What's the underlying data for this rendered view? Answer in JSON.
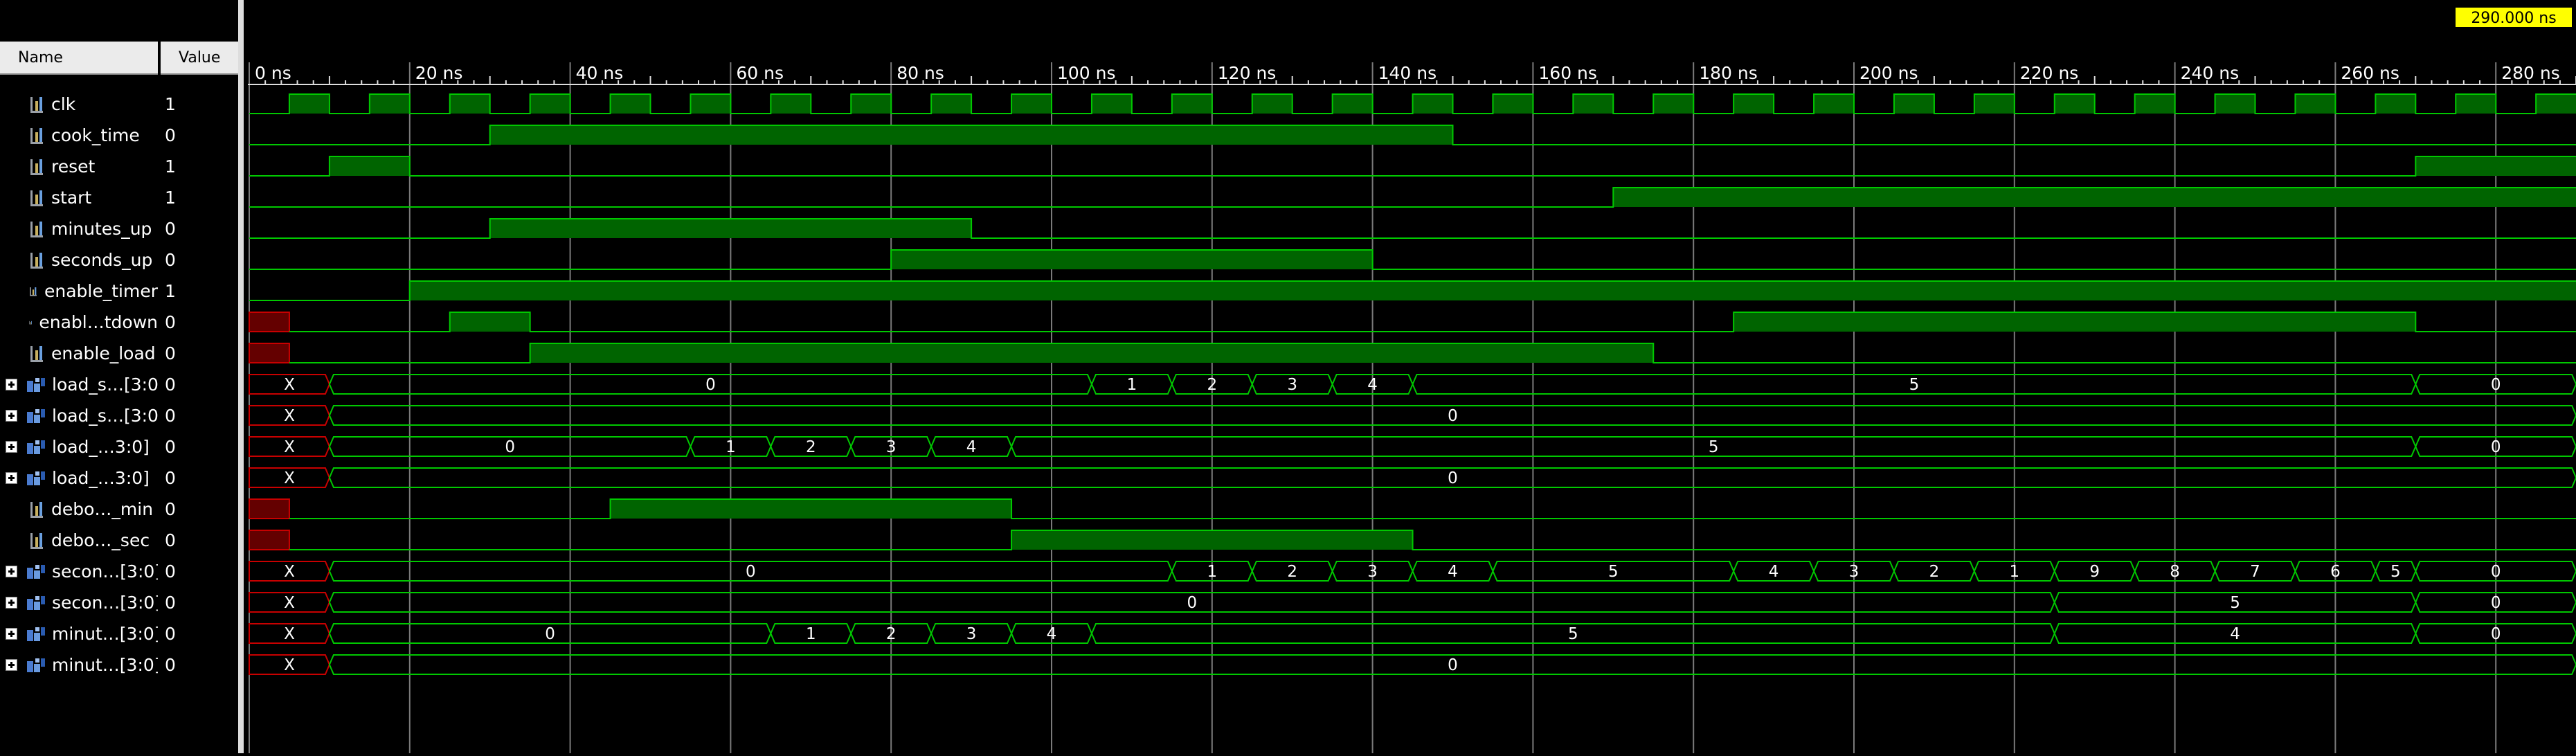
{
  "header": {
    "name_label": "Name",
    "value_label": "Value"
  },
  "cursor": {
    "time_label": "290.000 ns"
  },
  "timeline": {
    "tick_labels": [
      "0 ns",
      "20 ns",
      "40 ns",
      "60 ns",
      "80 ns",
      "100 ns",
      "120 ns",
      "140 ns",
      "160 ns",
      "180 ns",
      "200 ns",
      "220 ns",
      "240 ns",
      "260 ns",
      "280 ns"
    ],
    "tick_values": [
      0,
      20,
      40,
      60,
      80,
      100,
      120,
      140,
      160,
      180,
      200,
      220,
      240,
      260,
      280
    ]
  },
  "signals": [
    {
      "name": "clk",
      "value": "1",
      "kind": "bit",
      "type": "clock",
      "period": 10,
      "first_rise": 5
    },
    {
      "name": "cook_time",
      "value": "0",
      "kind": "bit",
      "segments": [
        [
          0,
          30,
          0
        ],
        [
          30,
          150,
          1
        ],
        [
          150,
          290,
          0
        ]
      ]
    },
    {
      "name": "reset",
      "value": "1",
      "kind": "bit",
      "segments": [
        [
          0,
          10,
          0
        ],
        [
          10,
          20,
          1
        ],
        [
          20,
          270,
          0
        ],
        [
          270,
          290,
          1
        ]
      ]
    },
    {
      "name": "start",
      "value": "1",
      "kind": "bit",
      "segments": [
        [
          0,
          170,
          0
        ],
        [
          170,
          290,
          1
        ]
      ]
    },
    {
      "name": "minutes_up",
      "value": "0",
      "kind": "bit",
      "segments": [
        [
          0,
          30,
          0
        ],
        [
          30,
          90,
          1
        ],
        [
          90,
          290,
          0
        ]
      ]
    },
    {
      "name": "seconds_up",
      "value": "0",
      "kind": "bit",
      "segments": [
        [
          0,
          80,
          0
        ],
        [
          80,
          140,
          1
        ],
        [
          140,
          290,
          0
        ]
      ]
    },
    {
      "name": "enable_timer",
      "value": "1",
      "kind": "bit",
      "segments": [
        [
          0,
          20,
          0
        ],
        [
          20,
          290,
          1
        ]
      ]
    },
    {
      "name": "enabl…tdown",
      "value": "0",
      "kind": "bit",
      "segments": [
        [
          0,
          5,
          "x"
        ],
        [
          5,
          25,
          0
        ],
        [
          25,
          35,
          1
        ],
        [
          35,
          185,
          0
        ],
        [
          185,
          270,
          1
        ],
        [
          270,
          290,
          0
        ]
      ]
    },
    {
      "name": "enable_load",
      "value": "0",
      "kind": "bit",
      "segments": [
        [
          0,
          5,
          "x"
        ],
        [
          5,
          35,
          0
        ],
        [
          35,
          175,
          1
        ],
        [
          175,
          290,
          0
        ]
      ]
    },
    {
      "name": "load_s…[3:0]",
      "value": "0",
      "kind": "bus",
      "segments": [
        [
          0,
          10,
          "X"
        ],
        [
          10,
          105,
          "0"
        ],
        [
          105,
          115,
          "1"
        ],
        [
          115,
          125,
          "2"
        ],
        [
          125,
          135,
          "3"
        ],
        [
          135,
          145,
          "4"
        ],
        [
          145,
          270,
          "5"
        ],
        [
          270,
          290,
          "0"
        ]
      ]
    },
    {
      "name": "load_s…[3:0]",
      "value": "0",
      "kind": "bus",
      "segments": [
        [
          0,
          10,
          "X"
        ],
        [
          10,
          290,
          "0"
        ]
      ]
    },
    {
      "name": "load_…3:0]",
      "value": "0",
      "kind": "bus",
      "segments": [
        [
          0,
          10,
          "X"
        ],
        [
          10,
          55,
          "0"
        ],
        [
          55,
          65,
          "1"
        ],
        [
          65,
          75,
          "2"
        ],
        [
          75,
          85,
          "3"
        ],
        [
          85,
          95,
          "4"
        ],
        [
          95,
          270,
          "5"
        ],
        [
          270,
          290,
          "0"
        ]
      ]
    },
    {
      "name": "load_…3:0]",
      "value": "0",
      "kind": "bus",
      "segments": [
        [
          0,
          10,
          "X"
        ],
        [
          10,
          290,
          "0"
        ]
      ]
    },
    {
      "name": "debo…_min",
      "value": "0",
      "kind": "bit",
      "segments": [
        [
          0,
          5,
          "x"
        ],
        [
          5,
          45,
          0
        ],
        [
          45,
          95,
          1
        ],
        [
          95,
          290,
          0
        ]
      ]
    },
    {
      "name": "debo…_sec",
      "value": "0",
      "kind": "bit",
      "segments": [
        [
          0,
          5,
          "x"
        ],
        [
          5,
          95,
          0
        ],
        [
          95,
          145,
          1
        ],
        [
          145,
          290,
          0
        ]
      ]
    },
    {
      "name": "secon…[3:0]",
      "value": "0",
      "kind": "bus",
      "segments": [
        [
          0,
          10,
          "X"
        ],
        [
          10,
          115,
          "0"
        ],
        [
          115,
          125,
          "1"
        ],
        [
          125,
          135,
          "2"
        ],
        [
          135,
          145,
          "3"
        ],
        [
          145,
          155,
          "4"
        ],
        [
          155,
          185,
          "5"
        ],
        [
          185,
          195,
          "4"
        ],
        [
          195,
          205,
          "3"
        ],
        [
          205,
          215,
          "2"
        ],
        [
          215,
          225,
          "1"
        ],
        [
          225,
          235,
          "9"
        ],
        [
          235,
          245,
          "8"
        ],
        [
          245,
          255,
          "7"
        ],
        [
          255,
          265,
          "6"
        ],
        [
          265,
          270,
          "5"
        ],
        [
          270,
          290,
          "0"
        ]
      ]
    },
    {
      "name": "secon…[3:0]",
      "value": "0",
      "kind": "bus",
      "segments": [
        [
          0,
          10,
          "X"
        ],
        [
          10,
          225,
          "0"
        ],
        [
          225,
          270,
          "5"
        ],
        [
          270,
          290,
          "0"
        ]
      ]
    },
    {
      "name": "minut…[3:0]",
      "value": "0",
      "kind": "bus",
      "segments": [
        [
          0,
          10,
          "X"
        ],
        [
          10,
          65,
          "0"
        ],
        [
          65,
          75,
          "1"
        ],
        [
          75,
          85,
          "2"
        ],
        [
          85,
          95,
          "3"
        ],
        [
          95,
          105,
          "4"
        ],
        [
          105,
          225,
          "5"
        ],
        [
          225,
          270,
          "4"
        ],
        [
          270,
          290,
          "0"
        ]
      ]
    },
    {
      "name": "minut…[3:0]",
      "value": "0",
      "kind": "bus",
      "segments": [
        [
          0,
          10,
          "X"
        ],
        [
          10,
          290,
          "0"
        ]
      ]
    }
  ],
  "colors": {
    "wave": "#00c800",
    "wave_fill": "#006400",
    "x_state": "#c80000",
    "x_fill": "#640000",
    "grid": "#7a7a7a",
    "text": "#ffffff",
    "cursor_bg": "#ffff00"
  },
  "icons": {
    "bit_signal": "signal-icon",
    "bus_signal": "bus-icon",
    "expand": "expand-plus-icon"
  }
}
